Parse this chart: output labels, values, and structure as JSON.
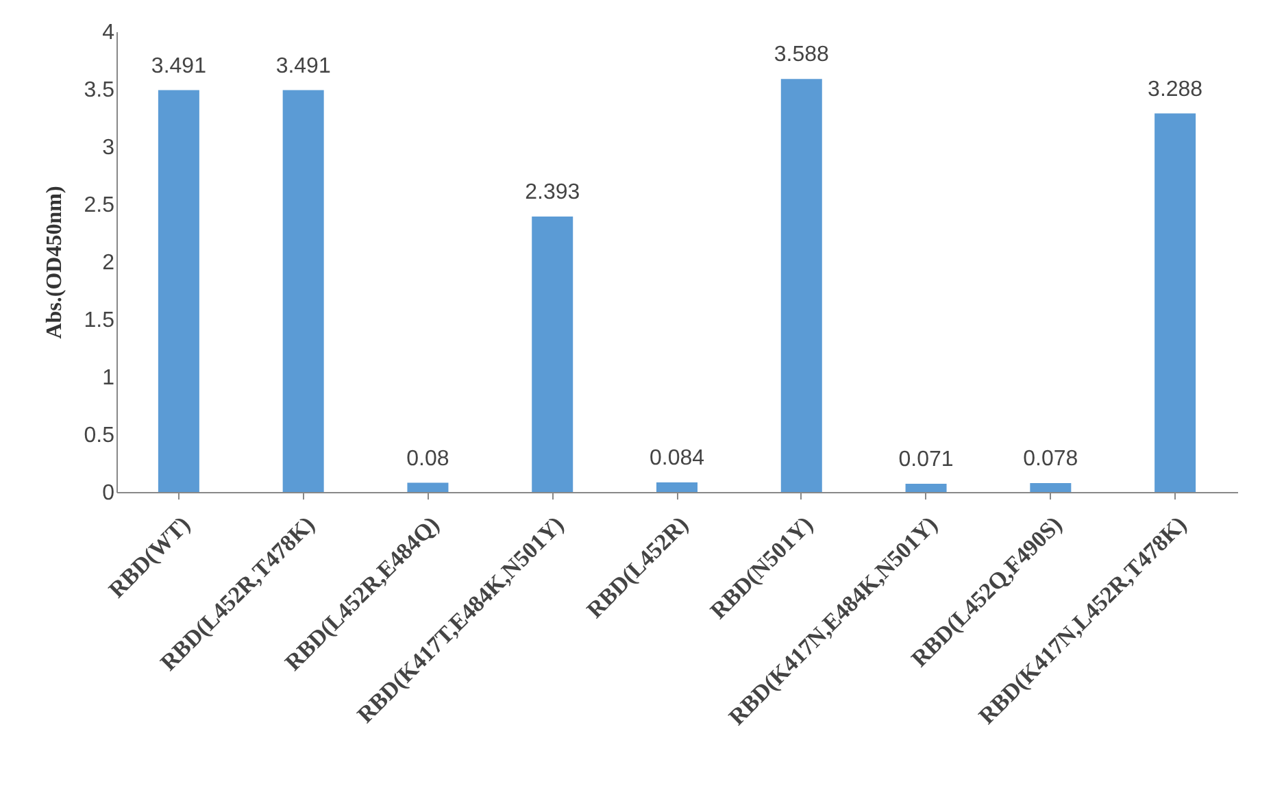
{
  "chart_data": {
    "type": "bar",
    "ylabel": "Abs.(OD450nm)",
    "categories": [
      "RBD(WT)",
      "RBD(L452R,T478K)",
      "RBD(L452R,E484Q)",
      "RBD(K417T,E484K,N501Y)",
      "RBD(L452R)",
      "RBD(N501Y)",
      "RBD(K417N,E484K,N501Y)",
      "RBD(L452Q,F490S)",
      "RBD(K417N,L452R,T478K)"
    ],
    "values": [
      3.491,
      3.491,
      0.08,
      2.393,
      0.084,
      3.588,
      0.071,
      0.078,
      3.288
    ],
    "color": "#5b9bd5",
    "ylim": [
      0,
      4
    ],
    "yticks": [
      0,
      0.5,
      1,
      1.5,
      2,
      2.5,
      3,
      3.5,
      4
    ],
    "grid": false,
    "data_labels": true
  }
}
